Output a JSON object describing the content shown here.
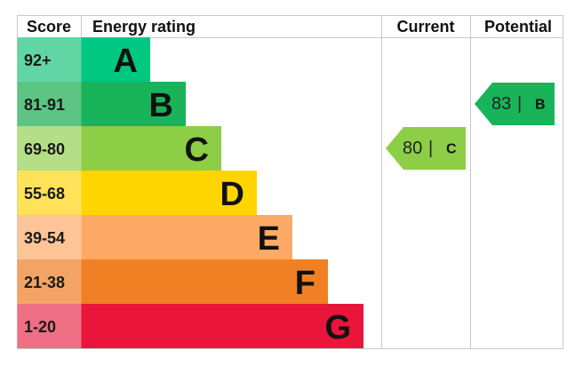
{
  "header": {
    "score": "Score",
    "rating": "Energy rating",
    "current": "Current",
    "potential": "Potential"
  },
  "bands": [
    {
      "score": "92+",
      "letter": "A",
      "color": "#00c781",
      "score_color": "#62d5a5"
    },
    {
      "score": "81-91",
      "letter": "B",
      "color": "#19b459",
      "score_color": "#5cc584"
    },
    {
      "score": "69-80",
      "letter": "C",
      "color": "#8dce46",
      "score_color": "#b5df86"
    },
    {
      "score": "55-68",
      "letter": "D",
      "color": "#ffd500",
      "score_color": "#ffe25a"
    },
    {
      "score": "39-54",
      "letter": "E",
      "color": "#fcaa65",
      "score_color": "#fdc596"
    },
    {
      "score": "21-38",
      "letter": "F",
      "color": "#ef8023",
      "score_color": "#f3a464"
    },
    {
      "score": "1-20",
      "letter": "G",
      "color": "#e9153b",
      "score_color": "#ef6f84"
    }
  ],
  "current": {
    "value": 80,
    "separator": "|",
    "letter": "C",
    "band": 2
  },
  "potential": {
    "value": 83,
    "separator": "|",
    "letter": "B",
    "band": 1
  }
}
